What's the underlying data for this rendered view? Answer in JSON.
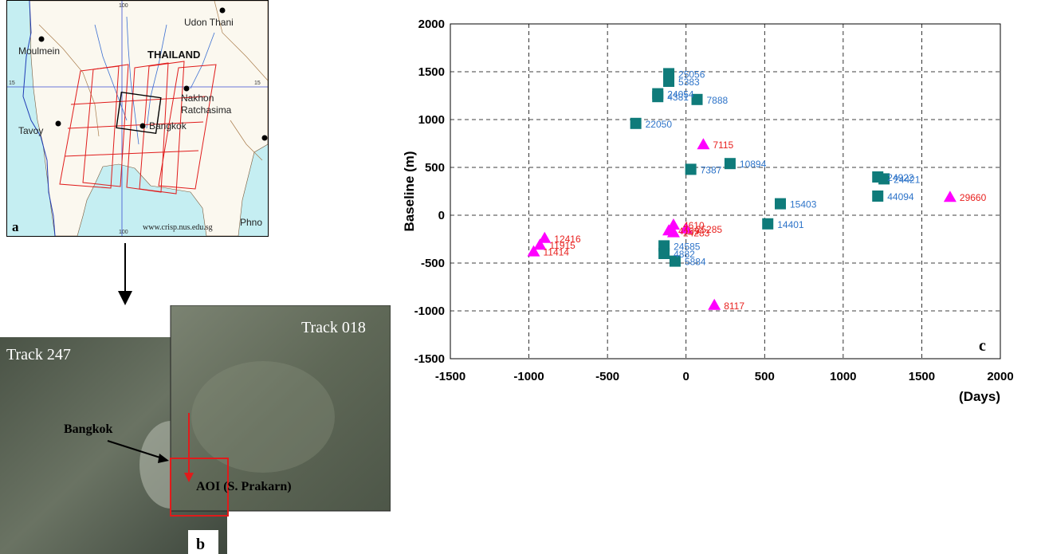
{
  "panels": {
    "a": {
      "letter": "a",
      "country": "THAILAND",
      "cities": [
        "Udon Thani",
        "Moulmein",
        "Nakhon",
        "Ratchasima",
        "Tavoy",
        "Bangkok",
        "Phno"
      ],
      "credit": "www.crisp.nus.edu.sg",
      "grid_labels": [
        "100",
        "15",
        "15",
        "100"
      ]
    },
    "b": {
      "letter": "b",
      "track_left": "Track 247",
      "track_right": "Track 018",
      "city_label": "Bangkok",
      "aoi_label": "AOI (S. Prakarn)"
    },
    "c": {
      "letter": "c"
    }
  },
  "colors": {
    "ers_marker": "#0f7b7a",
    "ers_label": "#2e74c9",
    "envisat_marker": "#ff00ff",
    "envisat_label": "#e8211f",
    "grid": "#000000"
  },
  "chart_data": {
    "type": "scatter",
    "title": "",
    "xlabel": "(Days)",
    "ylabel": "Baseline (m)",
    "xlim": [
      -1500,
      2000
    ],
    "ylim": [
      -1500,
      2000
    ],
    "xticks": [
      -1500,
      -1000,
      -500,
      0,
      500,
      1000,
      1500,
      2000
    ],
    "yticks": [
      -1500,
      -1000,
      -500,
      0,
      500,
      1000,
      1500,
      2000
    ],
    "grid": true,
    "series": [
      {
        "marker": "square",
        "points": [
          {
            "x": -110,
            "y": 1480,
            "label": "25056"
          },
          {
            "x": -110,
            "y": 1400,
            "label": "5383"
          },
          {
            "x": -180,
            "y": 1270,
            "label": "24054"
          },
          {
            "x": -180,
            "y": 1240,
            "label": "4381"
          },
          {
            "x": 70,
            "y": 1210,
            "label": "7888"
          },
          {
            "x": -320,
            "y": 960,
            "label": "22050"
          },
          {
            "x": 30,
            "y": 480,
            "label": "7387"
          },
          {
            "x": 280,
            "y": 540,
            "label": "10894"
          },
          {
            "x": 1220,
            "y": 400,
            "label": "24922"
          },
          {
            "x": 1260,
            "y": 380,
            "label": "24421"
          },
          {
            "x": 1220,
            "y": 200,
            "label": "44094"
          },
          {
            "x": 600,
            "y": 120,
            "label": "15403"
          },
          {
            "x": 520,
            "y": -90,
            "label": "14401"
          },
          {
            "x": -140,
            "y": -320,
            "label": "24585"
          },
          {
            "x": -140,
            "y": -400,
            "label": "4882"
          },
          {
            "x": -70,
            "y": -480,
            "label": "5884"
          }
        ]
      },
      {
        "marker": "triangle",
        "points": [
          {
            "x": 110,
            "y": 740,
            "label": "7115"
          },
          {
            "x": 1680,
            "y": 190,
            "label": "29660"
          },
          {
            "x": -80,
            "y": -100,
            "label": "4610"
          },
          {
            "x": -110,
            "y": -160,
            "label": "4109"
          },
          {
            "x": 0,
            "y": -140,
            "label": "25285"
          },
          {
            "x": -80,
            "y": -180,
            "label": "24283"
          },
          {
            "x": -900,
            "y": -240,
            "label": "12416"
          },
          {
            "x": -930,
            "y": -310,
            "label": "11915"
          },
          {
            "x": -970,
            "y": -380,
            "label": "11414"
          },
          {
            "x": 180,
            "y": -940,
            "label": "8117"
          }
        ]
      }
    ]
  }
}
